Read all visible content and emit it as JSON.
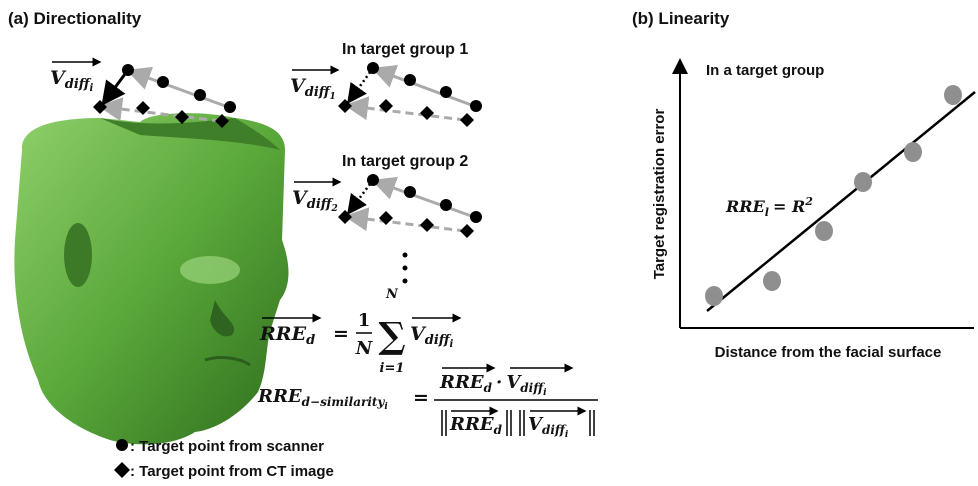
{
  "panel_a": {
    "title": "(a) Directionality",
    "group1_label": "In target group 1",
    "group2_label": "In target group 2",
    "vector_i": {
      "base": "V",
      "sub": "diff",
      "index": "i"
    },
    "vector_1": {
      "base": "V",
      "sub": "diff",
      "index": "1"
    },
    "vector_2": {
      "base": "V",
      "sub": "diff",
      "index": "2"
    },
    "formula_rre_d": {
      "lhs": "RRE",
      "lhs_sub": "d",
      "eq": "=",
      "num": "1",
      "den": "N",
      "sum_top": "N",
      "sum": "∑",
      "sum_bottom": "i=1",
      "term": "V",
      "term_sub": "diff",
      "term_index": "i"
    },
    "formula_similarity": {
      "lhs": "RRE",
      "lhs_sub": "d−similarity",
      "lhs_index": "i",
      "eq": "=",
      "num_a": "RRE",
      "num_a_sub": "d",
      "dot": "·",
      "num_b": "V",
      "num_b_sub": "diff",
      "num_b_index": "i",
      "den_a": "RRE",
      "den_a_sub": "d",
      "den_b": "V",
      "den_b_sub": "diff",
      "den_b_index": "i"
    },
    "legend": [
      {
        "text": ": Target point from scanner"
      },
      {
        "text": ": Target point from CT image"
      }
    ]
  },
  "panel_b": {
    "title": "(b) Linearity",
    "annotation": "In a target group",
    "y_label": "Target registration error",
    "x_label": "Distance from the facial surface",
    "formula": {
      "lhs": "RRE",
      "lhs_sub": "l",
      "eq": "= R",
      "sup": "2"
    }
  }
}
